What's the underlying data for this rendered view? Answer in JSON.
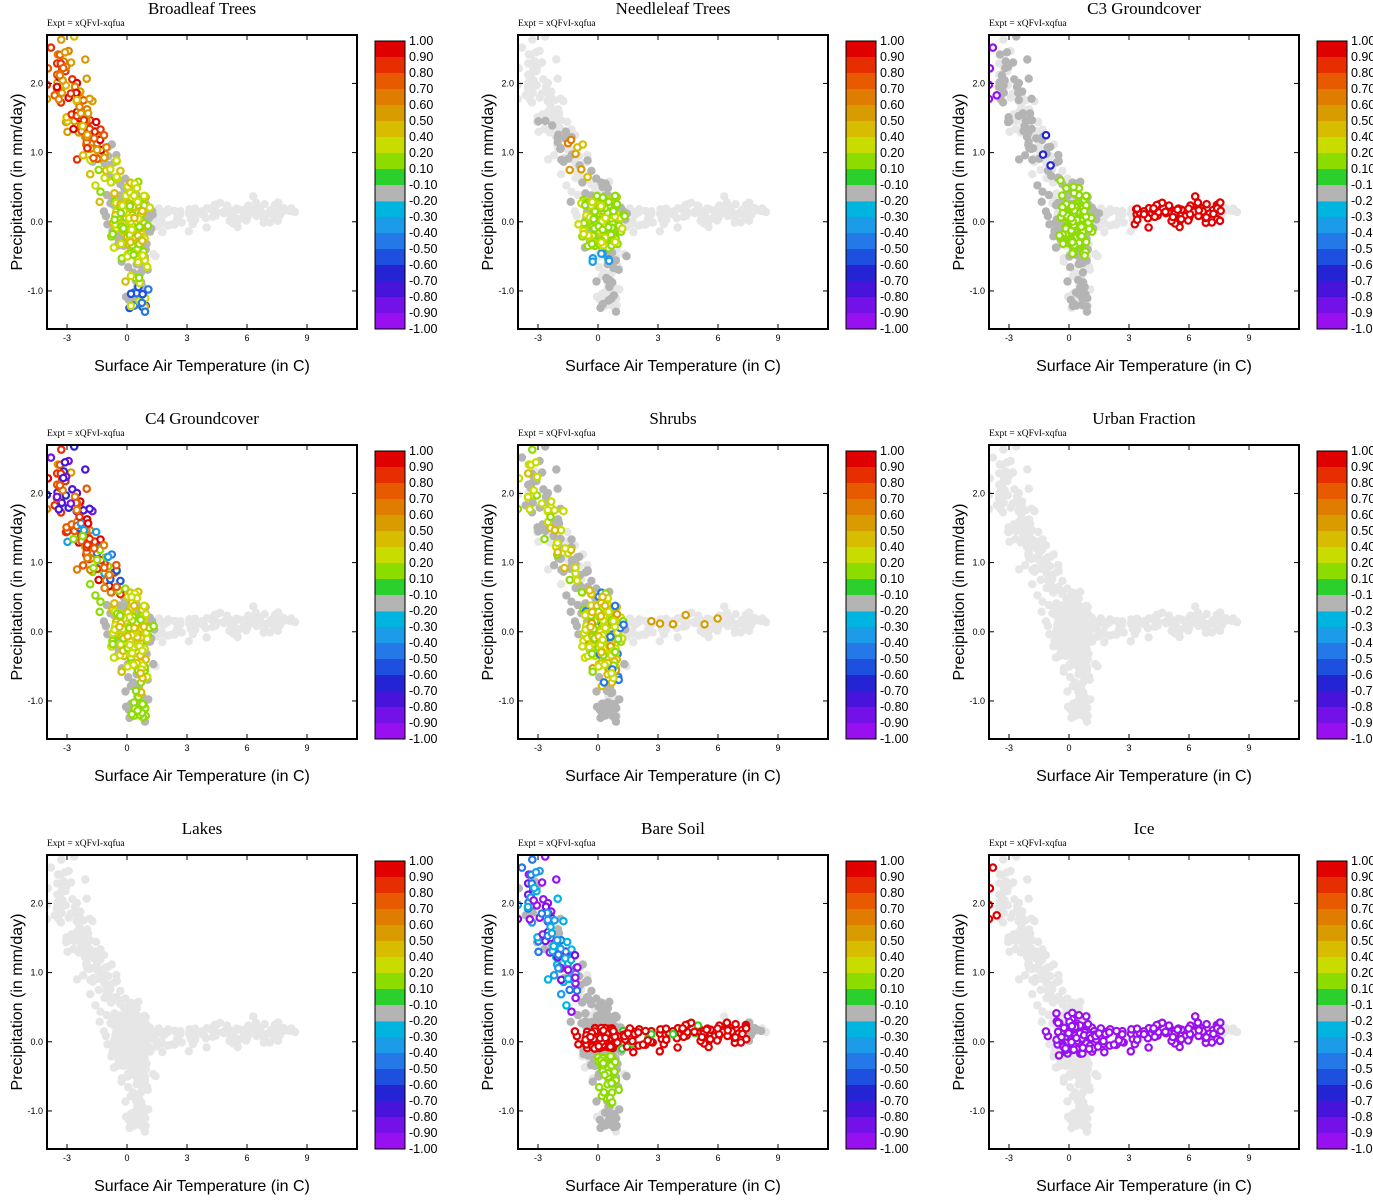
{
  "figure": {
    "expt_label": "Expt = xQFvI-xqfua",
    "xlabel": "Surface Air Temperature (in C)",
    "ylabel": "Precipitation (in mm/day)",
    "x_ticks": [
      "-3",
      "0",
      "3",
      "6",
      "9"
    ],
    "y_ticks": [
      "-1.0",
      "0.0",
      "1.0",
      "2.0"
    ],
    "colorbar_ticks": [
      "1.00",
      "0.90",
      "0.80",
      "0.70",
      "0.60",
      "0.50",
      "0.40",
      "0.20",
      "0.10",
      "-0.10",
      "-0.20",
      "-0.30",
      "-0.40",
      "-0.50",
      "-0.60",
      "-0.70",
      "-0.80",
      "-0.90",
      "-1.00"
    ],
    "colorbar_colors": [
      "#e00000",
      "#e62e00",
      "#e85a00",
      "#e07c00",
      "#d89c00",
      "#d8bc00",
      "#c8dc00",
      "#8cdc00",
      "#2cd02c",
      "#b4b4b4",
      "#00cccc",
      "#00b4e0",
      "#1c9ce8",
      "#2478e8",
      "#1e50e0",
      "#2424d4",
      "#4814dc",
      "#7410e8",
      "#9810f0"
    ],
    "background_color": "#e6e6e6",
    "grey_color": "#b4b4b4"
  },
  "chart_data": [
    {
      "type": "scatter",
      "title": "Broadleaf Trees",
      "xlim": [
        -4,
        11.5
      ],
      "ylim": [
        -1.55,
        2.7
      ],
      "colorbar_range": [
        -1.0,
        1.0
      ]
    },
    {
      "type": "scatter",
      "title": "Needleleaf Trees",
      "xlim": [
        -4,
        11.5
      ],
      "ylim": [
        -1.55,
        2.7
      ],
      "colorbar_range": [
        -1.0,
        1.0
      ]
    },
    {
      "type": "scatter",
      "title": "C3 Groundcover",
      "xlim": [
        -4,
        11.5
      ],
      "ylim": [
        -1.55,
        2.7
      ],
      "colorbar_range": [
        -1.0,
        1.0
      ]
    },
    {
      "type": "scatter",
      "title": "C4 Groundcover",
      "xlim": [
        -4,
        11.5
      ],
      "ylim": [
        -1.55,
        2.7
      ],
      "colorbar_range": [
        -1.0,
        1.0
      ]
    },
    {
      "type": "scatter",
      "title": "Shrubs",
      "xlim": [
        -4,
        11.5
      ],
      "ylim": [
        -1.55,
        2.7
      ],
      "colorbar_range": [
        -1.0,
        1.0
      ]
    },
    {
      "type": "scatter",
      "title": "Urban Fraction",
      "xlim": [
        -4,
        11.5
      ],
      "ylim": [
        -1.55,
        2.7
      ],
      "colorbar_range": [
        -1.0,
        1.0
      ]
    },
    {
      "type": "scatter",
      "title": "Lakes",
      "xlim": [
        -4,
        11.5
      ],
      "ylim": [
        -1.55,
        2.7
      ],
      "colorbar_range": [
        -1.0,
        1.0
      ]
    },
    {
      "type": "scatter",
      "title": "Bare Soil",
      "xlim": [
        -4,
        11.5
      ],
      "ylim": [
        -1.55,
        2.7
      ],
      "colorbar_range": [
        -1.0,
        1.0
      ]
    },
    {
      "type": "scatter",
      "title": "Ice",
      "xlim": [
        -4,
        11.5
      ],
      "ylim": [
        -1.55,
        2.7
      ],
      "colorbar_range": [
        -1.0,
        1.0
      ]
    }
  ]
}
